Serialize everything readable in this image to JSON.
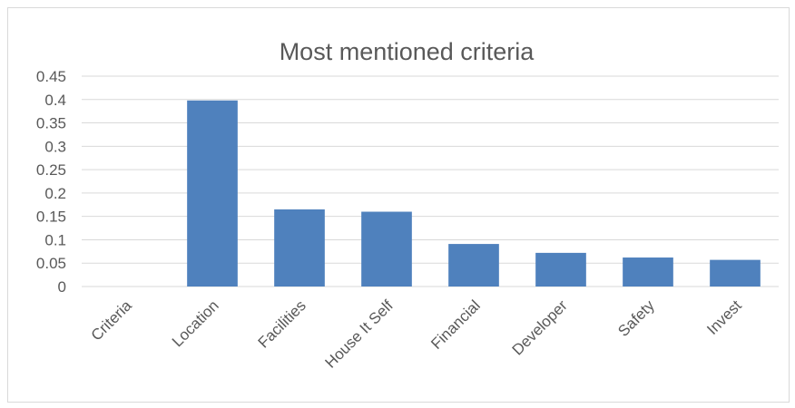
{
  "chart_data": {
    "type": "bar",
    "title": "Most mentioned criteria",
    "xlabel": "",
    "ylabel": "",
    "categories": [
      "Criteria",
      "Location",
      "Facilities",
      "House It Self",
      "Financial",
      "Developer",
      "Safety",
      "Invest"
    ],
    "values": [
      0,
      0.398,
      0.165,
      0.16,
      0.091,
      0.072,
      0.062,
      0.057
    ],
    "ylim": [
      0,
      0.45
    ],
    "yticks": [
      "0",
      "0.05",
      "0.1",
      "0.15",
      "0.2",
      "0.25",
      "0.3",
      "0.35",
      "0.4",
      "0.45"
    ],
    "grid": true,
    "legend": "none",
    "bar_color": "#4f81bd",
    "grid_color": "#d9d9d9",
    "text_color": "#595959"
  }
}
